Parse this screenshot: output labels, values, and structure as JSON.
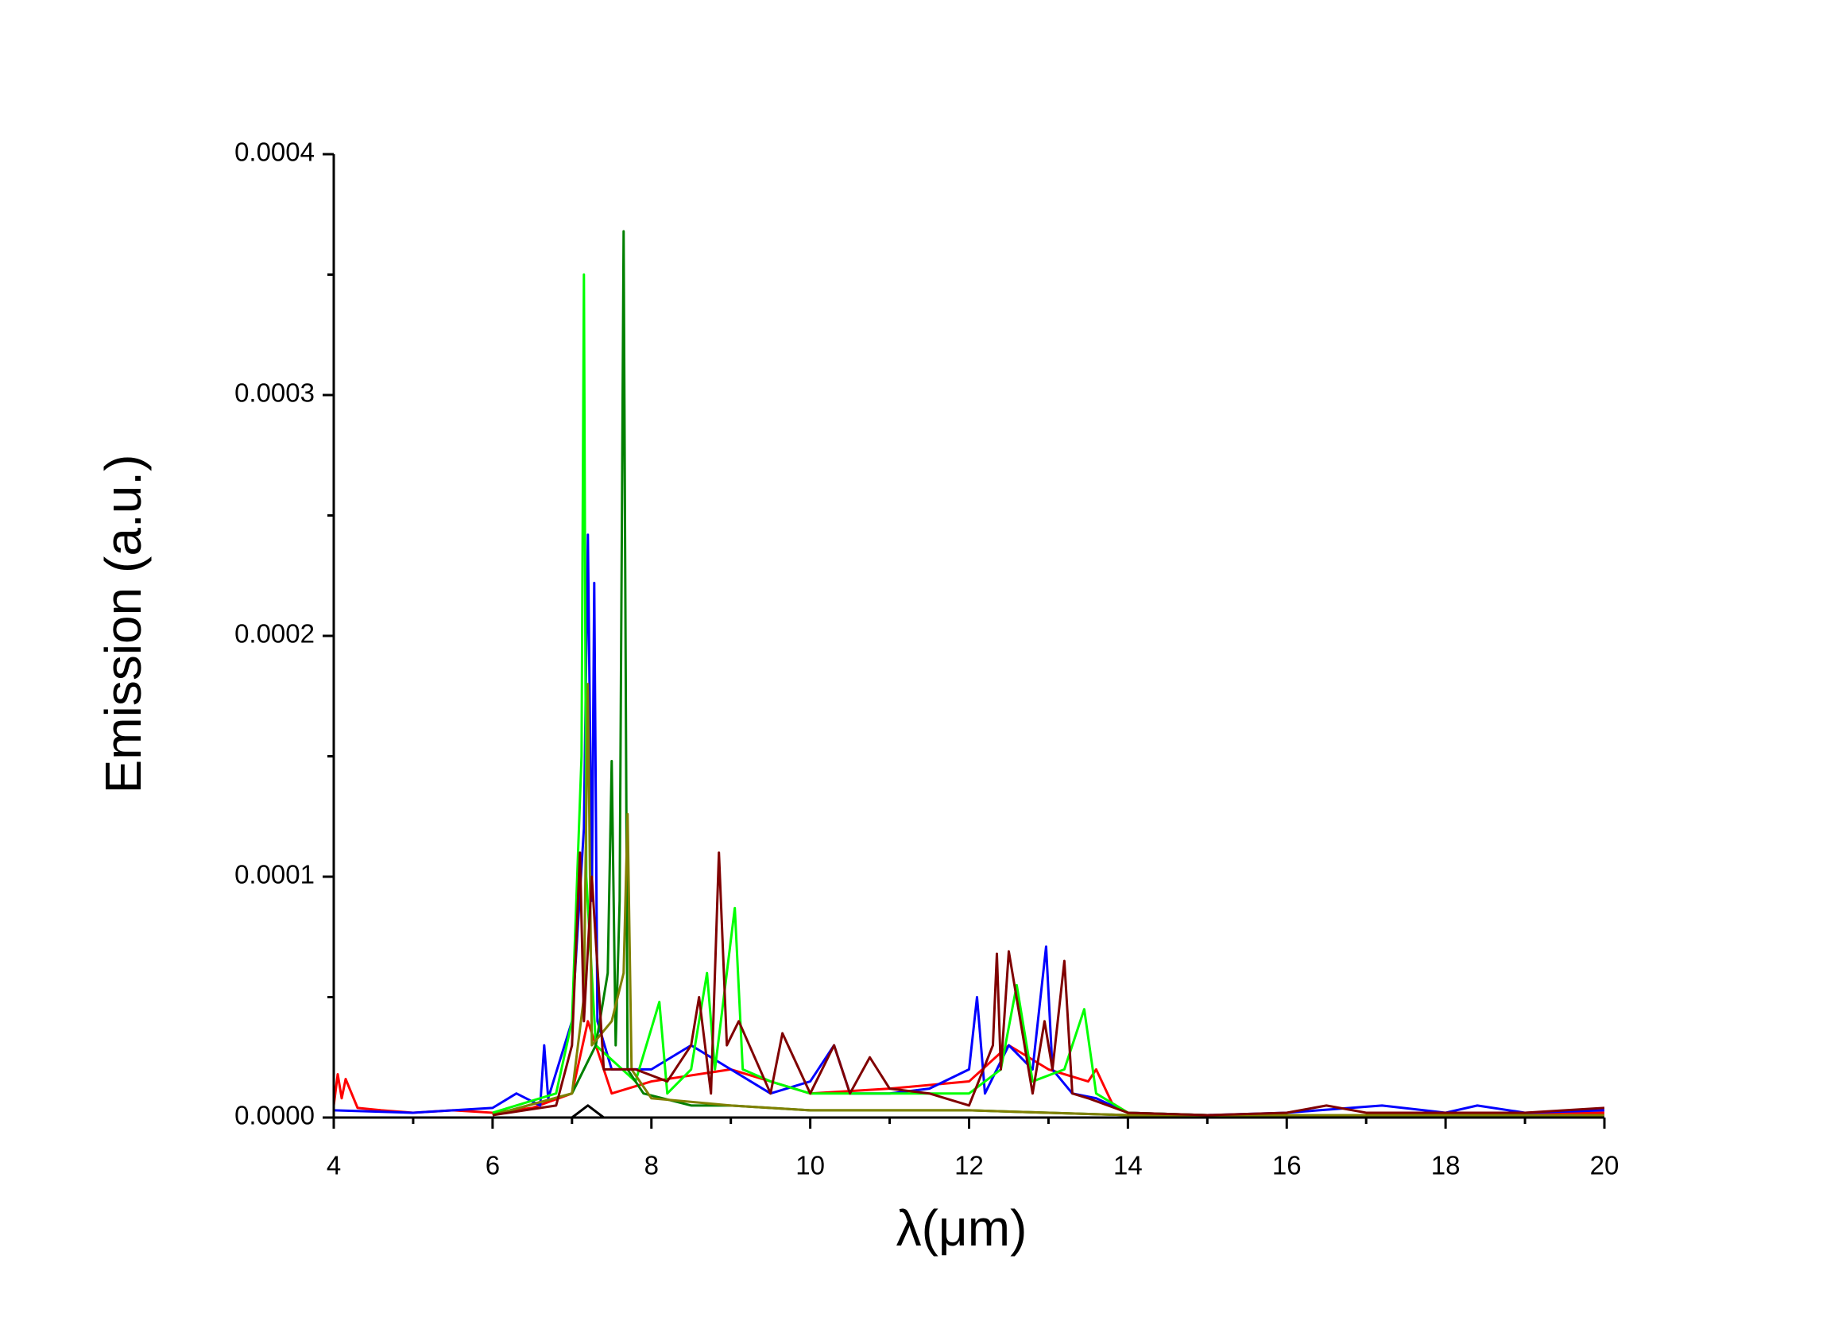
{
  "chart_data": {
    "type": "line",
    "x_label": "λ(μm)",
    "y_label": "Emission (a.u.)",
    "xlim": [
      4,
      20
    ],
    "xticks": [
      4,
      6,
      8,
      10,
      12,
      14,
      16,
      18,
      20
    ],
    "ylim": [
      0,
      0.0004
    ],
    "yticks": [
      {
        "value": 0,
        "label": "0.0000"
      },
      0.0001,
      0.0002,
      0.0003,
      0.0004
    ],
    "series": [
      {
        "color": "#000000",
        "x": [
          4,
          7,
          7.2,
          7.4,
          8,
          20
        ],
        "values": [
          0,
          0,
          5e-06,
          0,
          0,
          0
        ]
      },
      {
        "color": "#ff0000",
        "x": [
          4,
          4.05,
          4.1,
          4.15,
          4.3,
          4.6,
          5,
          5.5,
          6,
          6.5,
          7,
          7.2,
          7.5,
          8,
          9,
          10,
          11,
          12,
          12.5,
          13,
          13.5,
          13.6,
          13.8,
          14,
          15,
          16,
          18,
          20
        ],
        "values": [
          5e-06,
          1.8e-05,
          8e-06,
          1.6e-05,
          4e-06,
          3e-06,
          2e-06,
          3e-06,
          2e-06,
          4e-06,
          1e-05,
          4e-05,
          1e-05,
          1.5e-05,
          2e-05,
          1e-05,
          1.2e-05,
          1.5e-05,
          3e-05,
          2e-05,
          1.5e-05,
          2e-05,
          6e-06,
          2e-06,
          1e-06,
          1e-06,
          1e-06,
          2e-06
        ]
      },
      {
        "color": "#0000ff",
        "x": [
          4,
          5,
          6,
          6.3,
          6.6,
          6.65,
          6.7,
          7,
          7.15,
          7.2,
          7.25,
          7.28,
          7.32,
          7.5,
          8,
          8.5,
          9,
          9.5,
          10,
          10.3,
          10.5,
          11,
          11.5,
          12,
          12.1,
          12.2,
          12.5,
          12.8,
          12.97,
          13.05,
          13.3,
          13.6,
          14,
          15,
          16,
          17.2,
          18,
          18.4,
          19,
          20
        ],
        "values": [
          3e-06,
          2e-06,
          4e-06,
          1e-05,
          5e-06,
          3e-05,
          8e-06,
          4e-05,
          0.00012,
          0.000242,
          9e-05,
          0.000222,
          4e-05,
          2e-05,
          2e-05,
          3e-05,
          2e-05,
          1e-05,
          1.5e-05,
          3e-05,
          1e-05,
          1e-05,
          1.2e-05,
          2e-05,
          5e-05,
          1e-05,
          3e-05,
          2e-05,
          7.1e-05,
          2e-05,
          1e-05,
          8e-06,
          2e-06,
          1e-06,
          2e-06,
          5e-06,
          2e-06,
          5e-06,
          2e-06,
          3e-06
        ]
      },
      {
        "color": "#00ff00",
        "x": [
          6,
          6.8,
          7.0,
          7.12,
          7.15,
          7.18,
          7.3,
          7.8,
          8.1,
          8.2,
          8.5,
          8.7,
          8.8,
          9.05,
          9.15,
          9.5,
          10,
          11,
          12,
          12.4,
          12.6,
          12.8,
          13.2,
          13.45,
          13.6,
          14,
          15,
          20
        ],
        "values": [
          2e-06,
          1e-05,
          4e-05,
          0.00015,
          0.00035,
          0.0001,
          3e-05,
          1.5e-05,
          4.8e-05,
          1e-05,
          2e-05,
          6e-05,
          2e-05,
          8.7e-05,
          2e-05,
          1.5e-05,
          1e-05,
          1e-05,
          1e-05,
          2e-05,
          5.5e-05,
          1.5e-05,
          2e-05,
          4.5e-05,
          1e-05,
          2e-06,
          1e-06,
          1e-06
        ]
      },
      {
        "color": "#008000",
        "x": [
          6,
          7,
          7.3,
          7.45,
          7.5,
          7.55,
          7.6,
          7.65,
          7.7,
          7.9,
          8.5,
          9,
          10,
          12,
          14,
          20
        ],
        "values": [
          1e-06,
          1e-05,
          3e-05,
          6e-05,
          0.000148,
          3e-05,
          9e-05,
          0.000368,
          2e-05,
          1e-05,
          5e-06,
          5e-06,
          3e-06,
          3e-06,
          1e-06,
          1e-06
        ]
      },
      {
        "color": "#808000",
        "x": [
          6,
          7,
          7.15,
          7.2,
          7.25,
          7.5,
          7.65,
          7.7,
          7.75,
          8,
          9,
          10,
          12,
          14,
          20
        ],
        "values": [
          1e-06,
          1e-05,
          5e-05,
          0.00018,
          3e-05,
          4e-05,
          6e-05,
          0.000126,
          2e-05,
          8e-06,
          5e-06,
          3e-06,
          3e-06,
          1e-06,
          1e-06
        ]
      },
      {
        "color": "#800000",
        "x": [
          6,
          6.8,
          7,
          7.1,
          7.15,
          7.25,
          7.4,
          7.8,
          8.2,
          8.5,
          8.6,
          8.75,
          8.85,
          8.95,
          9.1,
          9.5,
          9.65,
          10,
          10.3,
          10.5,
          10.75,
          11,
          11.5,
          12,
          12.3,
          12.35,
          12.4,
          12.5,
          12.8,
          12.95,
          13.05,
          13.2,
          13.3,
          13.5,
          14,
          15,
          16,
          16.5,
          17,
          18,
          19,
          20
        ],
        "values": [
          1e-06,
          5e-06,
          3e-05,
          0.00011,
          4e-05,
          0.0001,
          2e-05,
          2e-05,
          1.5e-05,
          3e-05,
          5e-05,
          1e-05,
          0.00011,
          3e-05,
          4e-05,
          1e-05,
          3.5e-05,
          1e-05,
          3e-05,
          1e-05,
          2.5e-05,
          1.2e-05,
          1e-05,
          5e-06,
          3e-05,
          6.8e-05,
          2e-05,
          6.9e-05,
          1e-05,
          4e-05,
          2e-05,
          6.5e-05,
          1e-05,
          8e-06,
          2e-06,
          1e-06,
          2e-06,
          5e-06,
          2e-06,
          2e-06,
          2e-06,
          4e-06
        ]
      }
    ]
  }
}
